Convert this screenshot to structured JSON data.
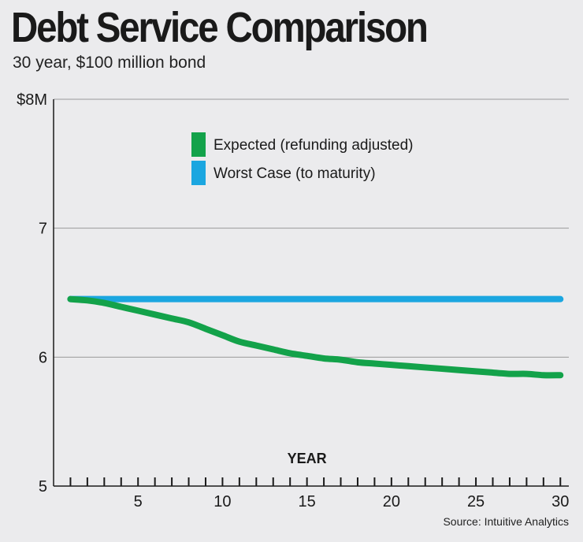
{
  "header": {
    "title": "Debt Service Comparison",
    "subtitle": "30 year, $100 million bond"
  },
  "footer": {
    "source": "Source: Intuitive Analytics"
  },
  "colors": {
    "background": "#ebebed",
    "expected": "#13a24a",
    "worst_case": "#1ba6e0",
    "grid": "#9a9a9a",
    "axis": "#1a1a1a"
  },
  "chart_data": {
    "type": "line",
    "title": "Debt Service Comparison",
    "subtitle": "30 year, $100 million bond",
    "xlabel": "YEAR",
    "ylabel": "",
    "xlim": [
      0,
      30.5
    ],
    "ylim": [
      5,
      8
    ],
    "y_ticks": [
      {
        "value": 8,
        "label": "$8M"
      },
      {
        "value": 7,
        "label": "7"
      },
      {
        "value": 6,
        "label": "6"
      },
      {
        "value": 5,
        "label": "5"
      }
    ],
    "x_ticks": [
      {
        "value": 5,
        "label": "5"
      },
      {
        "value": 10,
        "label": "10"
      },
      {
        "value": 15,
        "label": "15"
      },
      {
        "value": 20,
        "label": "20"
      },
      {
        "value": 25,
        "label": "25"
      },
      {
        "value": 30,
        "label": "30"
      }
    ],
    "x_minor_ticks": [
      1,
      2,
      3,
      4,
      5,
      6,
      7,
      8,
      9,
      10,
      11,
      12,
      13,
      14,
      15,
      16,
      17,
      18,
      19,
      20,
      21,
      22,
      23,
      24,
      25,
      26,
      27,
      28,
      29,
      30
    ],
    "grid": true,
    "legend_position": "top-center",
    "series": [
      {
        "name": "Worst Case (to maturity)",
        "color": "#1ba6e0",
        "x": [
          1,
          2,
          3,
          4,
          5,
          6,
          7,
          8,
          9,
          10,
          11,
          12,
          13,
          14,
          15,
          16,
          17,
          18,
          19,
          20,
          21,
          22,
          23,
          24,
          25,
          26,
          27,
          28,
          29,
          30
        ],
        "y": [
          6.45,
          6.45,
          6.45,
          6.45,
          6.45,
          6.45,
          6.45,
          6.45,
          6.45,
          6.45,
          6.45,
          6.45,
          6.45,
          6.45,
          6.45,
          6.45,
          6.45,
          6.45,
          6.45,
          6.45,
          6.45,
          6.45,
          6.45,
          6.45,
          6.45,
          6.45,
          6.45,
          6.45,
          6.45,
          6.45
        ]
      },
      {
        "name": "Expected (refunding adjusted)",
        "color": "#13a24a",
        "x": [
          1,
          2,
          3,
          4,
          5,
          6,
          7,
          8,
          9,
          10,
          11,
          12,
          13,
          14,
          15,
          16,
          17,
          18,
          19,
          20,
          21,
          22,
          23,
          24,
          25,
          26,
          27,
          28,
          29,
          30
        ],
        "y": [
          6.45,
          6.44,
          6.42,
          6.39,
          6.36,
          6.33,
          6.3,
          6.27,
          6.22,
          6.17,
          6.12,
          6.09,
          6.06,
          6.03,
          6.01,
          5.99,
          5.98,
          5.96,
          5.95,
          5.94,
          5.93,
          5.92,
          5.91,
          5.9,
          5.89,
          5.88,
          5.87,
          5.87,
          5.86,
          5.86
        ]
      }
    ],
    "legend_order": [
      "Expected (refunding adjusted)",
      "Worst Case (to maturity)"
    ]
  }
}
